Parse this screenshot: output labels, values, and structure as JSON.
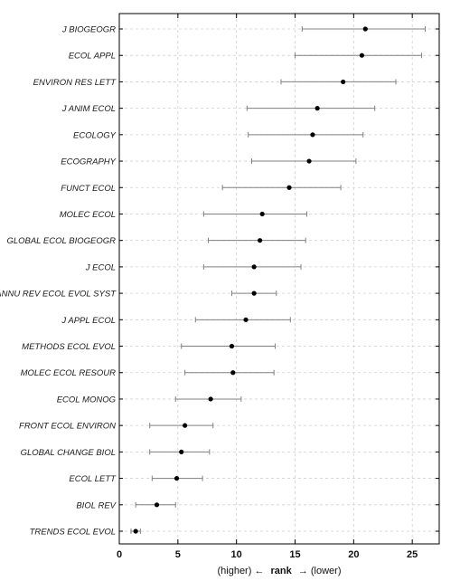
{
  "chart_data": {
    "type": "scatter",
    "subtype": "point-with-interval",
    "categories": [
      "J BIOGEOGR",
      "ECOL APPL",
      "ENVIRON RES LETT",
      "J ANIM ECOL",
      "ECOLOGY",
      "ECOGRAPHY",
      "FUNCT ECOL",
      "MOLEC ECOL",
      "GLOBAL ECOL BIOGEOGR",
      "J ECOL",
      "ANNU REV ECOL EVOL SYST",
      "J APPL ECOL",
      "METHODS ECOL EVOL",
      "MOLEC ECOL RESOUR",
      "ECOL MONOG",
      "FRONT ECOL ENVIRON",
      "GLOBAL CHANGE BIOL",
      "ECOL LETT",
      "BIOL REV",
      "TRENDS ECOL EVOL"
    ],
    "values": [
      21.0,
      20.7,
      19.1,
      16.9,
      16.5,
      16.2,
      14.5,
      12.2,
      12.0,
      11.5,
      11.5,
      10.8,
      9.6,
      9.7,
      7.8,
      5.6,
      5.3,
      4.9,
      3.2,
      1.4
    ],
    "lower": [
      15.6,
      15.0,
      13.8,
      10.9,
      11.0,
      11.3,
      8.8,
      7.2,
      7.6,
      7.2,
      9.6,
      6.5,
      5.3,
      5.6,
      4.8,
      2.6,
      2.6,
      2.8,
      1.4,
      1.0
    ],
    "upper": [
      26.1,
      25.8,
      23.6,
      21.8,
      20.8,
      20.2,
      18.9,
      16.0,
      15.9,
      15.5,
      13.4,
      14.6,
      13.3,
      13.2,
      10.4,
      8.0,
      7.7,
      7.1,
      4.8,
      1.8
    ],
    "xlim": [
      0,
      27.3
    ],
    "xticks": [
      "0",
      "5",
      "10",
      "15",
      "20",
      "25"
    ],
    "xlabel": {
      "left": "(higher) ←",
      "bold": "rank",
      "right": "→ (lower)"
    },
    "grid": true,
    "colors": {
      "point": "#000000",
      "errorbar": "#808080",
      "grid": "#d0d0d0",
      "frame": "#000000"
    }
  }
}
